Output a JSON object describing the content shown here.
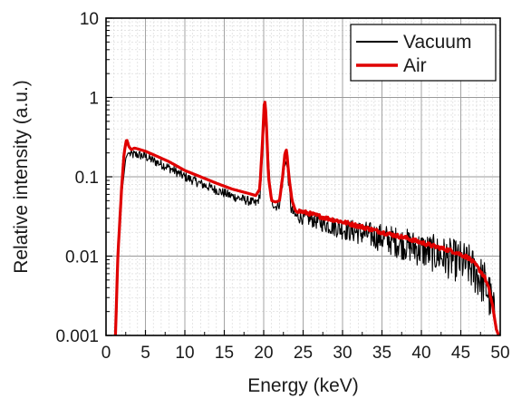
{
  "chart_data": {
    "type": "line",
    "xlabel": "Energy (keV)",
    "ylabel": "Relative intensity (a.u.)",
    "xlim": [
      0,
      50
    ],
    "ylim": [
      0.001,
      10
    ],
    "yscale": "log",
    "grid": true,
    "minor_grid": true,
    "legend_position": "top-right",
    "x_ticks": [
      0,
      5,
      10,
      15,
      20,
      25,
      30,
      35,
      40,
      45,
      50
    ],
    "x_tick_labels": [
      "0",
      "5",
      "10",
      "15",
      "20",
      "25",
      "30",
      "35",
      "40",
      "45",
      "50"
    ],
    "y_ticks": [
      0.001,
      0.01,
      0.1,
      1,
      10
    ],
    "y_tick_labels": [
      "0.001",
      "0.01",
      "0.1",
      "1",
      "10"
    ],
    "series": [
      {
        "name": "Vacuum",
        "color": "#000000",
        "noisy": true,
        "x": [
          1.2,
          1.5,
          2.0,
          2.5,
          2.8,
          3.2,
          4.0,
          5.0,
          6.0,
          8.0,
          10.0,
          12.0,
          14.0,
          16.0,
          18.0,
          19.0,
          19.5,
          19.9,
          20.2,
          20.5,
          20.9,
          21.5,
          22.0,
          22.5,
          22.8,
          23.1,
          23.5,
          24.0,
          26.0,
          28.0,
          30.0,
          32.0,
          35.0,
          38.0,
          40.0,
          42.0,
          44.0,
          45.0,
          46.0,
          47.0,
          48.0,
          48.5,
          49.0,
          49.5,
          49.8
        ],
        "y": [
          0.001,
          0.008,
          0.06,
          0.17,
          0.2,
          0.19,
          0.19,
          0.18,
          0.16,
          0.13,
          0.1,
          0.082,
          0.068,
          0.057,
          0.05,
          0.046,
          0.055,
          0.2,
          0.82,
          0.25,
          0.05,
          0.042,
          0.045,
          0.1,
          0.17,
          0.1,
          0.038,
          0.032,
          0.029,
          0.025,
          0.022,
          0.02,
          0.017,
          0.014,
          0.012,
          0.0105,
          0.009,
          0.0085,
          0.0075,
          0.006,
          0.0045,
          0.0035,
          0.0022,
          0.0012,
          0.001
        ]
      },
      {
        "name": "Air",
        "color": "#e00000",
        "noisy": false,
        "x": [
          1.2,
          1.5,
          2.0,
          2.3,
          2.6,
          2.9,
          3.2,
          3.6,
          4.0,
          5.0,
          6.0,
          8.0,
          10.0,
          12.0,
          14.0,
          16.0,
          18.0,
          19.0,
          19.5,
          19.9,
          20.1,
          20.3,
          20.6,
          21.0,
          21.5,
          22.0,
          22.4,
          22.7,
          22.9,
          23.2,
          23.6,
          24.0,
          26.0,
          28.0,
          30.0,
          32.0,
          35.0,
          38.0,
          40.0,
          42.0,
          44.0,
          45.0,
          46.0,
          47.0,
          48.0,
          48.5,
          49.0,
          49.5,
          49.8
        ],
        "y": [
          0.001,
          0.01,
          0.08,
          0.2,
          0.3,
          0.24,
          0.22,
          0.23,
          0.225,
          0.21,
          0.19,
          0.155,
          0.12,
          0.1,
          0.083,
          0.07,
          0.062,
          0.058,
          0.07,
          0.35,
          1.0,
          0.6,
          0.1,
          0.05,
          0.048,
          0.05,
          0.1,
          0.2,
          0.22,
          0.1,
          0.05,
          0.038,
          0.034,
          0.03,
          0.027,
          0.024,
          0.02,
          0.017,
          0.0148,
          0.013,
          0.0115,
          0.0105,
          0.0095,
          0.0075,
          0.0055,
          0.004,
          0.0025,
          0.0012,
          0.001
        ]
      }
    ]
  }
}
